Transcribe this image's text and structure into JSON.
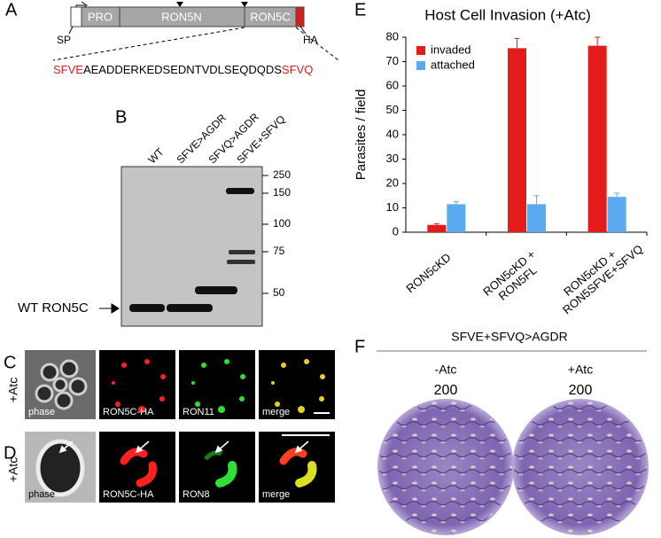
{
  "panel_a": {
    "label": "A",
    "domains": [
      "PRO",
      "RON5N",
      "RON5C"
    ],
    "signal_peptide": "SP",
    "tag": "HA",
    "sequence": [
      "SFVE",
      "AEADDERKEDSEDNTVDLSEQDQDS",
      "SFVQ"
    ]
  },
  "panel_b": {
    "label": "B",
    "lanes": [
      "WT",
      "SFVE>AGDR",
      "SFVQ>AGDR",
      "SFVE+SFVQ"
    ],
    "markers": [
      "250",
      "150",
      "100",
      "75",
      "50"
    ],
    "band_label": "WT RON5C"
  },
  "panel_c": {
    "label": "C",
    "condition": "+Atc",
    "images": [
      "phase",
      "RON5C-HA",
      "RON11",
      "merge"
    ]
  },
  "panel_d": {
    "label": "D",
    "condition": "+Atc",
    "images": [
      "phase",
      "RON5C-HA",
      "RON8",
      "merge"
    ]
  },
  "chart_data": {
    "type": "bar",
    "panel_label": "E",
    "title": "Host Cell Invasion (+Atc)",
    "y_label": "Parasites / field",
    "categories": [
      "RON5cKD",
      "RON5cKD + RON5FL",
      "RON5cKD + RON5SFVE+SFVQ"
    ],
    "series": [
      {
        "name": "invaded",
        "color": "#e31b1b",
        "values": [
          3,
          75.5,
          76.5
        ],
        "errors": [
          0.5,
          4,
          3.5
        ]
      },
      {
        "name": "attached",
        "color": "#5aaaf0",
        "values": [
          11.5,
          11.5,
          14.5
        ],
        "errors": [
          1,
          3.5,
          1.5
        ]
      }
    ],
    "ylim": [
      0,
      80
    ],
    "yticks": [
      0,
      10,
      20,
      30,
      40,
      50,
      60,
      70,
      80
    ],
    "legend": "upper left"
  },
  "panel_f": {
    "label": "F",
    "title": "SFVE+SFVQ>AGDR",
    "conditions": [
      "-Atc",
      "+Atc"
    ],
    "dilutions": [
      "200",
      "200"
    ]
  }
}
